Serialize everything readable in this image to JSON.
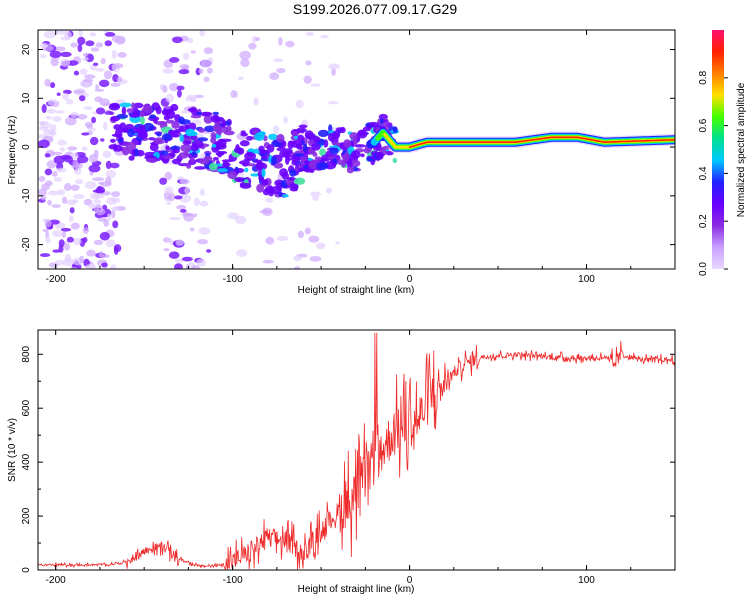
{
  "title": "S199.2026.077.09.17.G29",
  "chart_data": [
    {
      "type": "heatmap",
      "xlabel": "Height of straight line (km)",
      "ylabel": "Frequency (Hz)",
      "xlim": [
        -210,
        150
      ],
      "ylim": [
        -25,
        24
      ],
      "xticks": [
        -200,
        -100,
        0,
        100
      ],
      "yticks": [
        -20,
        -10,
        0,
        10,
        20
      ],
      "colorbar": {
        "label": "Normalized spectral amplitude",
        "range": [
          0,
          1
        ],
        "ticks": [
          "0.0",
          "0.2",
          "0.4",
          "0.6",
          "0.8"
        ],
        "tick_values": [
          0.0,
          0.2,
          0.4,
          0.6,
          0.8
        ],
        "colors": [
          "#e8d8ff",
          "#c9a0ff",
          "#8a2be2",
          "#6a00ff",
          "#2020ff",
          "#00c8ff",
          "#00e090",
          "#40ff00",
          "#ffe000",
          "#ff8000",
          "#ff2000",
          "#ff1070"
        ]
      },
      "ridge_frequency": [
        {
          "x": -165,
          "y": 4
        },
        {
          "x": -150,
          "y": 3
        },
        {
          "x": -130,
          "y": 2.5
        },
        {
          "x": -110,
          "y": 1
        },
        {
          "x": -95,
          "y": -2
        },
        {
          "x": -80,
          "y": -3.5
        },
        {
          "x": -70,
          "y": -4
        },
        {
          "x": -60,
          "y": -1
        },
        {
          "x": -45,
          "y": 0
        },
        {
          "x": -30,
          "y": -1
        },
        {
          "x": -20,
          "y": 1
        },
        {
          "x": -15,
          "y": 3
        },
        {
          "x": -8,
          "y": 0
        },
        {
          "x": 0,
          "y": 0
        },
        {
          "x": 10,
          "y": 1
        },
        {
          "x": 60,
          "y": 1
        },
        {
          "x": 80,
          "y": 2
        },
        {
          "x": 95,
          "y": 2
        },
        {
          "x": 110,
          "y": 1
        },
        {
          "x": 150,
          "y": 1.5
        }
      ]
    },
    {
      "type": "line",
      "xlabel": "Height of straight line (km)",
      "ylabel": "SNR (10 * v/v)",
      "xlim": [
        -210,
        150
      ],
      "ylim": [
        0,
        890
      ],
      "xticks": [
        -200,
        -100,
        0,
        100
      ],
      "yticks": [
        0,
        200,
        400,
        600,
        800
      ],
      "color": "#ee2a2a",
      "series": [
        {
          "name": "SNR",
          "x": [
            -210,
            -190,
            -170,
            -160,
            -150,
            -140,
            -130,
            -120,
            -110,
            -100,
            -90,
            -80,
            -70,
            -60,
            -50,
            -40,
            -30,
            -25,
            -20,
            -15,
            -10,
            -5,
            0,
            5,
            10,
            20,
            30,
            40,
            60,
            80,
            100,
            110,
            115,
            120,
            130,
            150
          ],
          "values": [
            20,
            18,
            20,
            30,
            70,
            90,
            40,
            15,
            15,
            30,
            70,
            120,
            110,
            60,
            150,
            220,
            280,
            350,
            400,
            450,
            500,
            520,
            540,
            560,
            620,
            700,
            760,
            790,
            800,
            790,
            785,
            790,
            760,
            800,
            780,
            780
          ]
        }
      ]
    }
  ]
}
